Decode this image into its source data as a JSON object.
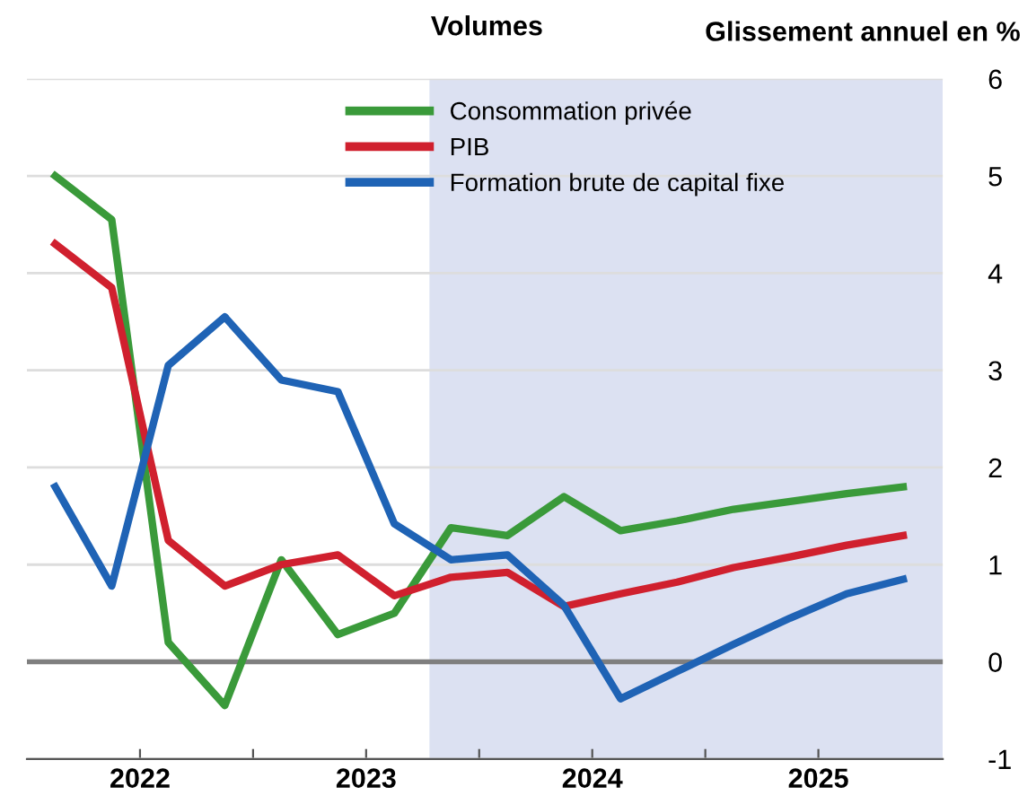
{
  "chart_data": {
    "type": "line",
    "title": "Volumes",
    "ylabel": "Glissement annuel en %",
    "x": [
      2022.125,
      2022.375,
      2022.625,
      2022.875,
      2023.125,
      2023.375,
      2023.625,
      2023.875,
      2024.125,
      2024.375,
      2024.625,
      2024.875,
      2025.125,
      2025.375,
      2025.625,
      2025.875
    ],
    "series": [
      {
        "name": "Consommation privée",
        "color": "#3a9a3a",
        "values": [
          5.0,
          4.55,
          0.2,
          -0.45,
          1.05,
          0.28,
          0.5,
          1.38,
          1.3,
          1.7,
          1.35,
          1.45,
          1.57,
          1.65,
          1.73,
          1.8
        ]
      },
      {
        "name": "PIB",
        "color": "#d0202e",
        "values": [
          4.3,
          3.85,
          1.25,
          0.78,
          1.0,
          1.1,
          0.68,
          0.87,
          0.92,
          0.57,
          0.7,
          0.82,
          0.97,
          1.08,
          1.2,
          1.3
        ]
      },
      {
        "name": "Formation brute de capital fixe",
        "color": "#1f63b5",
        "values": [
          1.8,
          0.78,
          3.05,
          3.55,
          2.9,
          2.78,
          1.42,
          1.05,
          1.1,
          0.58,
          -0.38,
          -0.1,
          0.18,
          0.45,
          0.7,
          0.85
        ]
      }
    ],
    "xlim": [
      2022.0,
      2026.05
    ],
    "xticks": [
      {
        "value": 2022.5,
        "label": "2022"
      },
      {
        "value": 2023.0,
        "label": null
      },
      {
        "value": 2023.5,
        "label": "2023"
      },
      {
        "value": 2024.0,
        "label": null
      },
      {
        "value": 2024.5,
        "label": "2024"
      },
      {
        "value": 2025.0,
        "label": null
      },
      {
        "value": 2025.5,
        "label": "2025"
      }
    ],
    "ylim": [
      -1,
      6
    ],
    "yticks": [
      -1,
      0,
      1,
      2,
      3,
      4,
      5,
      6
    ],
    "ref_lines": [
      {
        "axis": "y",
        "value": 0,
        "color": "#7f7f7f"
      }
    ],
    "bands": [
      {
        "axis": "x",
        "from": 2023.78,
        "to": 2026.05,
        "color": "#dce1f2"
      }
    ],
    "grid": "y",
    "legend": "top",
    "marker": "none",
    "line_style": "solid"
  }
}
